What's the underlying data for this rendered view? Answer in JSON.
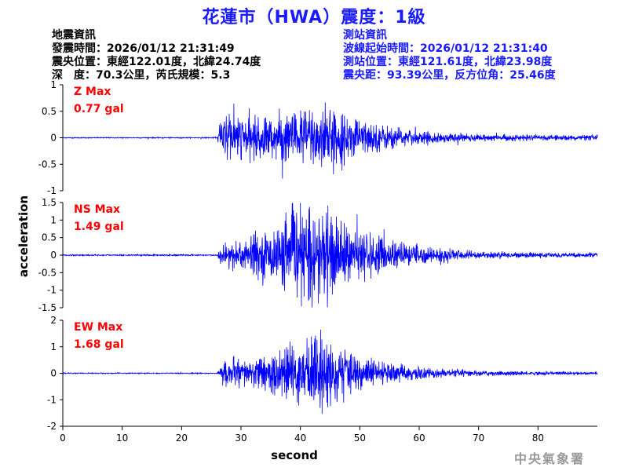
{
  "title": "花蓮市（HWA）震度：1級",
  "earthquake_info": {
    "heading": "地震資訊",
    "origin_time": "發震時間：2026/01/12 21:31:49",
    "epicenter": "震央位置：東經122.01度，北緯24.74度",
    "depth_magnitude": "深　度：70.3公里，芮氏規模：5.3"
  },
  "station_info": {
    "heading": "測站資訊",
    "wave_start": "波線起始時間：2026/01/12 21:31:40",
    "location": "測站位置：東經121.61度，北緯23.98度",
    "distance": "震央距：93.39公里，反方位角：25.46度"
  },
  "y_axis_label": "acceleration",
  "x_axis_label": "second",
  "agency": "中央氣象署",
  "colors": {
    "trace": "#0000ff",
    "max_label": "#ff0000",
    "title": "#1a1aff",
    "agency": "#9a9a9a"
  },
  "chart_data": [
    {
      "type": "line",
      "component": "Z",
      "max_label": "Z Max",
      "max_value_label": "0.77 gal",
      "peak": 0.77,
      "ylim": [
        -1,
        1
      ],
      "yticks": [
        -1,
        -0.5,
        0,
        0.5,
        1
      ],
      "ytick_labels": [
        "-1",
        "-0.5",
        "0",
        "0.5",
        "1"
      ],
      "xlim": [
        0,
        90
      ],
      "xticks": [
        0,
        10,
        20,
        30,
        40,
        50,
        60,
        70,
        80
      ],
      "xtick_labels": [
        "0",
        "10",
        "20",
        "30",
        "40",
        "50",
        "60",
        "70",
        "80"
      ],
      "p_wave_onset_s": 26.5,
      "envelope": [
        [
          0,
          0.01
        ],
        [
          26,
          0.01
        ],
        [
          26.5,
          0.35
        ],
        [
          28,
          0.45
        ],
        [
          31,
          0.4
        ],
        [
          35,
          0.42
        ],
        [
          38,
          0.5
        ],
        [
          40,
          0.55
        ],
        [
          42,
          0.62
        ],
        [
          43.5,
          0.72
        ],
        [
          45,
          0.55
        ],
        [
          48,
          0.42
        ],
        [
          52,
          0.3
        ],
        [
          56,
          0.2
        ],
        [
          60,
          0.12
        ],
        [
          65,
          0.09
        ],
        [
          70,
          0.07
        ],
        [
          80,
          0.05
        ],
        [
          90,
          0.05
        ]
      ]
    },
    {
      "type": "line",
      "component": "NS",
      "max_label": "NS Max",
      "max_value_label": "1.49 gal",
      "peak": 1.49,
      "ylim": [
        -1.5,
        1.5
      ],
      "yticks": [
        -1.5,
        -1,
        -0.5,
        0,
        0.5,
        1,
        1.5
      ],
      "ytick_labels": [
        "-1.5",
        "-1",
        "-0.5",
        "0",
        "0.5",
        "1",
        "1.5"
      ],
      "xlim": [
        0,
        90
      ],
      "xticks": [
        0,
        10,
        20,
        30,
        40,
        50,
        60,
        70,
        80
      ],
      "xtick_labels": [
        "0",
        "10",
        "20",
        "30",
        "40",
        "50",
        "60",
        "70",
        "80"
      ],
      "p_wave_onset_s": 26.5,
      "envelope": [
        [
          0,
          0.02
        ],
        [
          26,
          0.02
        ],
        [
          26.5,
          0.25
        ],
        [
          28,
          0.4
        ],
        [
          30,
          0.55
        ],
        [
          33,
          0.6
        ],
        [
          36,
          0.8
        ],
        [
          38,
          1.1
        ],
        [
          40,
          1.2
        ],
        [
          42,
          1.35
        ],
        [
          43.5,
          1.45
        ],
        [
          45,
          1.2
        ],
        [
          48,
          0.8
        ],
        [
          52,
          0.6
        ],
        [
          55,
          0.45
        ],
        [
          60,
          0.28
        ],
        [
          65,
          0.18
        ],
        [
          70,
          0.1
        ],
        [
          80,
          0.07
        ],
        [
          90,
          0.06
        ]
      ]
    },
    {
      "type": "line",
      "component": "EW",
      "max_label": "EW Max",
      "max_value_label": "1.68 gal",
      "peak": 1.68,
      "ylim": [
        -2,
        2
      ],
      "yticks": [
        -2,
        -1,
        0,
        1,
        2
      ],
      "ytick_labels": [
        "-2",
        "-1",
        "0",
        "1",
        "2"
      ],
      "xlim": [
        0,
        90
      ],
      "xticks": [
        0,
        10,
        20,
        30,
        40,
        50,
        60,
        70,
        80
      ],
      "xtick_labels": [
        "0",
        "10",
        "20",
        "30",
        "40",
        "50",
        "60",
        "70",
        "80"
      ],
      "p_wave_onset_s": 26.5,
      "envelope": [
        [
          0,
          0.02
        ],
        [
          26,
          0.02
        ],
        [
          26.5,
          0.3
        ],
        [
          28,
          0.55
        ],
        [
          31,
          0.5
        ],
        [
          35,
          0.75
        ],
        [
          38,
          1.05
        ],
        [
          40,
          1.25
        ],
        [
          42,
          1.4
        ],
        [
          43.5,
          1.6
        ],
        [
          45,
          1.25
        ],
        [
          48,
          0.8
        ],
        [
          52,
          0.55
        ],
        [
          56,
          0.35
        ],
        [
          60,
          0.22
        ],
        [
          65,
          0.15
        ],
        [
          70,
          0.1
        ],
        [
          80,
          0.07
        ],
        [
          90,
          0.06
        ]
      ]
    }
  ]
}
